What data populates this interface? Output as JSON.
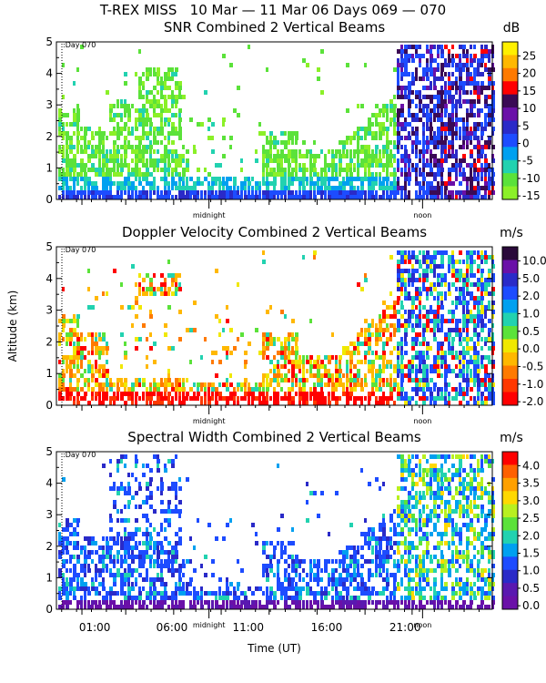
{
  "header": {
    "title": "T-REX MISS   10 Mar — 11 Mar 06 Days 069 — 070"
  },
  "chart_data": [
    {
      "type": "heatmap",
      "title": "SNR Combined 2 Vertical Beams",
      "ylabel": "",
      "ylim": [
        0,
        5
      ],
      "y_ticks": [
        "0",
        "1",
        "2",
        "3",
        "4",
        "5"
      ],
      "x_annotations": [
        "midnight",
        "noon"
      ],
      "day_marker": ":Day 070",
      "colorbar": {
        "unit": "dB",
        "labels": [
          "25",
          "20",
          "15",
          "10",
          "5",
          "0",
          "-5",
          "-10",
          "-15"
        ],
        "colors": [
          "#fff000",
          "#ffb800",
          "#ff7a00",
          "#ff0000",
          "#3a0a55",
          "#6a10a8",
          "#2a2ac8",
          "#1d4cff",
          "#00a0f0",
          "#22d2b0",
          "#5be23a",
          "#8bf028"
        ]
      }
    },
    {
      "type": "heatmap",
      "title": "Doppler Velocity Combined 2 Vertical Beams",
      "ylabel": "Altitude (km)",
      "ylim": [
        0,
        5
      ],
      "y_ticks": [
        "0",
        "1",
        "2",
        "3",
        "4",
        "5"
      ],
      "x_annotations": [
        "midnight",
        "noon"
      ],
      "day_marker": ":Day 070",
      "colorbar": {
        "unit": "m/s",
        "labels": [
          "10.0",
          "5.0",
          "2.0",
          "1.0",
          "0.5",
          "0.0",
          "-0.5",
          "-1.0",
          "-2.0"
        ],
        "colors": [
          "#2a0a3a",
          "#6a10a8",
          "#2a2ac8",
          "#1d4cff",
          "#00a0f0",
          "#22d2b0",
          "#5be23a",
          "#f0e800",
          "#ffb800",
          "#ff7a00",
          "#ff3800",
          "#ff0000"
        ]
      }
    },
    {
      "type": "heatmap",
      "title": "Spectral Width Combined 2 Vertical Beams",
      "xlabel": "Time (UT)",
      "ylabel": "",
      "ylim": [
        0,
        5
      ],
      "y_ticks": [
        "0",
        "1",
        "2",
        "3",
        "4",
        "5"
      ],
      "x_ticks": [
        "01:00",
        "06:00",
        "11:00",
        "16:00",
        "21:00"
      ],
      "x_annotations": [
        "midnight",
        "noon"
      ],
      "day_marker": ":Day 070",
      "colorbar": {
        "unit": "m/s",
        "labels": [
          "4.0",
          "3.5",
          "3.0",
          "2.5",
          "2.0",
          "1.5",
          "1.0",
          "0.5",
          "0.0"
        ],
        "colors": [
          "#ff0000",
          "#ff6000",
          "#ffa000",
          "#ffd800",
          "#b8f020",
          "#5be23a",
          "#22d2b0",
          "#00a0f0",
          "#1d4cff",
          "#2a2ac8",
          "#5a18b0",
          "#6a10a8"
        ]
      }
    }
  ]
}
